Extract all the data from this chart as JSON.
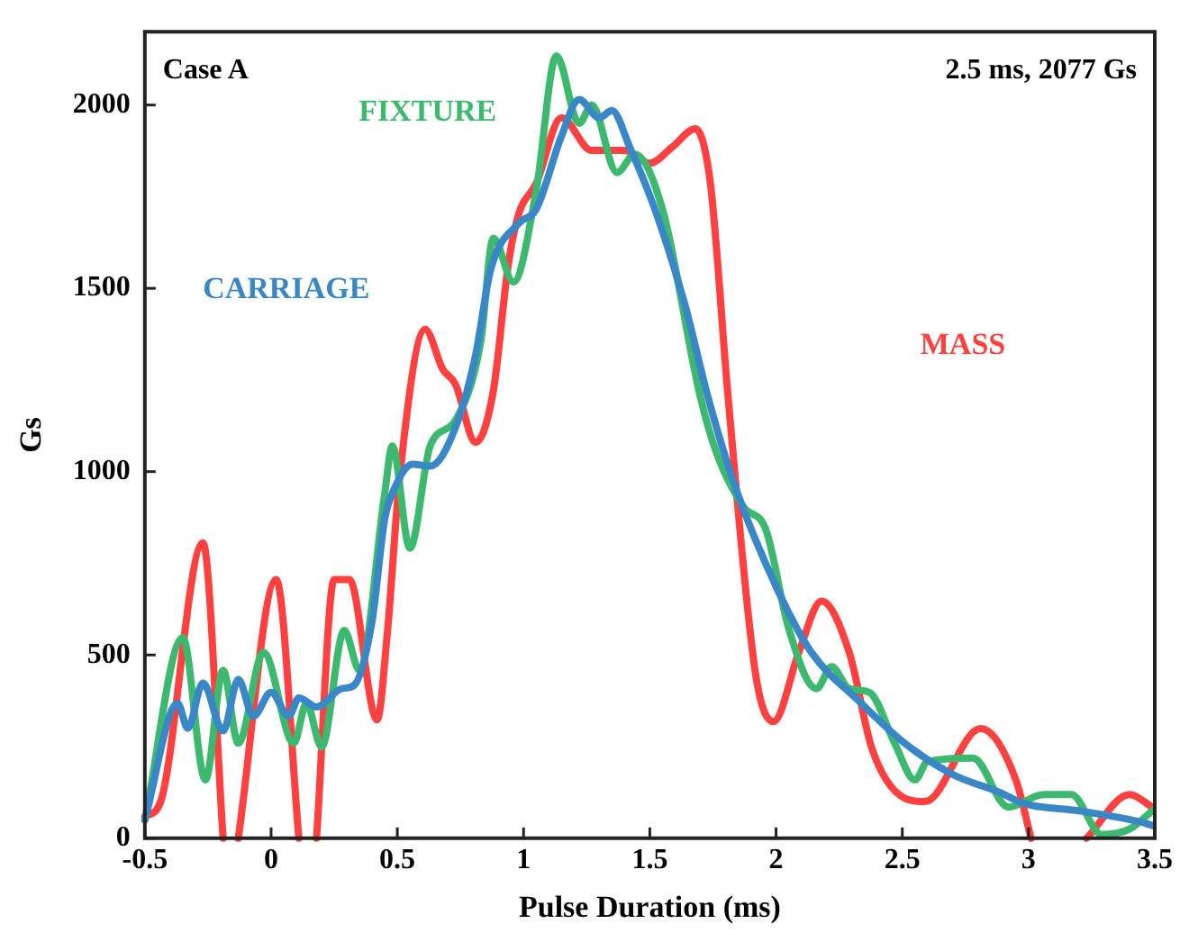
{
  "chart_data": {
    "type": "line",
    "xlabel": "Pulse Duration (ms)",
    "ylabel": "Gs",
    "annotations": [
      "Case A",
      "2.5 ms, 2077 Gs"
    ],
    "xlim": [
      -0.5,
      3.5
    ],
    "xticks": [
      -0.5,
      0,
      0.5,
      1,
      1.5,
      2,
      2.5,
      3,
      3.5
    ],
    "ylim": [
      0,
      2200
    ],
    "yticks": [
      0,
      500,
      1000,
      1500,
      2000
    ],
    "grid": false,
    "legend": false,
    "marker": "none",
    "line_style": "solid",
    "series": [
      {
        "name": "CARRIAGE",
        "color": "#3a87c8",
        "x": [
          -0.5,
          -0.37,
          -0.33,
          -0.27,
          -0.19,
          -0.13,
          -0.07,
          0.0,
          0.07,
          0.11,
          0.18,
          0.28,
          0.33,
          0.4,
          0.45,
          0.48,
          0.56,
          0.63,
          0.73,
          0.81,
          0.87,
          0.98,
          1.05,
          1.15,
          1.22,
          1.3,
          1.35,
          1.42,
          1.52,
          1.64,
          1.73,
          1.84,
          2.01,
          2.14,
          2.33,
          2.51,
          2.7,
          2.89,
          2.98,
          3.2,
          3.44,
          3.49
        ],
        "values": [
          50,
          368,
          300,
          423,
          293,
          433,
          333,
          398,
          333,
          383,
          358,
          408,
          418,
          592,
          871,
          940,
          1020,
          1015,
          1120,
          1318,
          1552,
          1677,
          1716,
          1915,
          2015,
          1965,
          1985,
          1886,
          1716,
          1453,
          1204,
          955,
          672,
          507,
          373,
          259,
          174,
          124,
          95,
          75,
          45,
          35
        ]
      },
      {
        "name": "FIXTURE",
        "color": "#3cb96e",
        "x": [
          -0.5,
          -0.35,
          -0.26,
          -0.19,
          -0.13,
          -0.03,
          0.09,
          0.14,
          0.2,
          0.29,
          0.35,
          0.45,
          0.48,
          0.55,
          0.63,
          0.73,
          0.83,
          0.88,
          0.96,
          1.05,
          1.13,
          1.22,
          1.27,
          1.37,
          1.44,
          1.55,
          1.7,
          1.77,
          1.87,
          1.96,
          2.05,
          2.16,
          2.22,
          2.29,
          2.37,
          2.47,
          2.55,
          2.6,
          2.78,
          2.92,
          3.06,
          3.17,
          3.29,
          3.4,
          3.49
        ],
        "values": [
          50,
          547,
          159,
          458,
          259,
          507,
          259,
          368,
          249,
          567,
          458,
          940,
          1070,
          791,
          1070,
          1140,
          1353,
          1637,
          1517,
          1766,
          2134,
          1950,
          2000,
          1816,
          1866,
          1716,
          1204,
          1040,
          905,
          841,
          572,
          408,
          468,
          408,
          398,
          259,
          159,
          209,
          219,
          85,
          119,
          119,
          10,
          25,
          75
        ]
      },
      {
        "name": "MASS",
        "color": "#ff4040",
        "x": [
          -0.5,
          -0.44,
          -0.27,
          -0.19,
          -0.16,
          -0.13,
          0.02,
          0.11,
          0.15,
          0.18,
          0.25,
          0.31,
          0.42,
          0.46,
          0.51,
          0.61,
          0.68,
          0.73,
          0.81,
          0.88,
          0.94,
          0.98,
          1.05,
          1.15,
          1.27,
          1.4,
          1.5,
          1.59,
          1.68,
          1.74,
          1.81,
          1.92,
          1.99,
          2.09,
          2.18,
          2.29,
          2.38,
          2.51,
          2.59,
          2.81,
          2.95,
          3.01,
          3.12,
          3.23,
          3.4,
          3.49
        ],
        "values": [
          60,
          95,
          806,
          0,
          null,
          0,
          706,
          0,
          null,
          0,
          706,
          706,
          323,
          557,
          990,
          1388,
          1279,
          1239,
          1080,
          1219,
          1567,
          1701,
          1786,
          1965,
          1876,
          1876,
          1841,
          1886,
          1935,
          1786,
          1204,
          443,
          318,
          507,
          647,
          507,
          244,
          109,
          100,
          299,
          159,
          0,
          null,
          0,
          119,
          85
        ]
      }
    ]
  }
}
